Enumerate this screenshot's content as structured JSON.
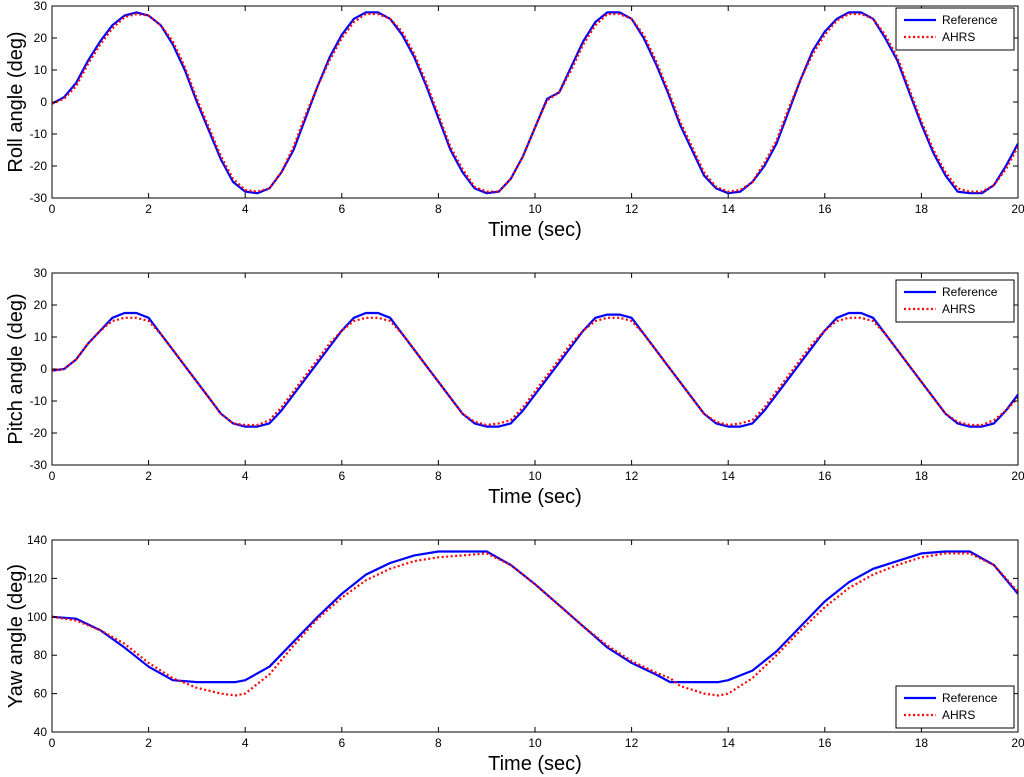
{
  "chart_data": [
    {
      "type": "line",
      "xlabel": "Time (sec)",
      "ylabel": "Roll angle (deg)",
      "xlim": [
        0,
        20
      ],
      "ylim": [
        -30,
        30
      ],
      "xticks": [
        0,
        2,
        4,
        6,
        8,
        10,
        12,
        14,
        16,
        18,
        20
      ],
      "yticks": [
        -30,
        -20,
        -10,
        0,
        10,
        20,
        30
      ],
      "legend_position": "top-right",
      "series": [
        {
          "name": "Reference",
          "color": "#0000ff",
          "style": "solid",
          "x": [
            0,
            0.25,
            0.5,
            0.75,
            1.0,
            1.25,
            1.5,
            1.75,
            2.0,
            2.25,
            2.5,
            2.75,
            3.0,
            3.25,
            3.5,
            3.75,
            4.0,
            4.25,
            4.5,
            4.75,
            5.0,
            5.25,
            5.5,
            5.75,
            6.0,
            6.25,
            6.5,
            6.75,
            7.0,
            7.25,
            7.5,
            7.75,
            8.0,
            8.25,
            8.5,
            8.75,
            9.0,
            9.25,
            9.5,
            9.75,
            10.0,
            10.25,
            10.5,
            10.75,
            11.0,
            11.25,
            11.5,
            11.75,
            12.0,
            12.25,
            12.5,
            12.75,
            13.0,
            13.25,
            13.5,
            13.75,
            14.0,
            14.25,
            14.5,
            14.75,
            15.0,
            15.25,
            15.5,
            15.75,
            16.0,
            16.25,
            16.5,
            16.75,
            17.0,
            17.25,
            17.5,
            17.75,
            18.0,
            18.25,
            18.5,
            18.75,
            19.0,
            19.25,
            19.5,
            19.75,
            20.0
          ],
          "y": [
            -0.5,
            1.5,
            6,
            13,
            19,
            24,
            27,
            28,
            27,
            24,
            18,
            10,
            0,
            -9,
            -18,
            -25,
            -28,
            -28.5,
            -27,
            -22,
            -15,
            -5,
            5,
            14,
            21,
            26,
            28,
            28,
            26,
            21,
            14,
            5,
            -5,
            -15,
            -22,
            -27,
            -28.5,
            -28,
            -24,
            -17,
            -8,
            1,
            3,
            11,
            19,
            25,
            28,
            28,
            26,
            20,
            12,
            3,
            -7,
            -15,
            -23,
            -27,
            -28.5,
            -28,
            -25,
            -20,
            -13,
            -3,
            7,
            16,
            22,
            26,
            28,
            28,
            26,
            20,
            13,
            3,
            -7,
            -16,
            -23,
            -28,
            -28.5,
            -28.5,
            -26,
            -20,
            -13
          ]
        },
        {
          "name": "AHRS",
          "color": "#ff0000",
          "style": "dotted",
          "x": [
            0,
            0.25,
            0.5,
            0.75,
            1.0,
            1.25,
            1.5,
            1.75,
            2.0,
            2.25,
            2.5,
            2.75,
            3.0,
            3.25,
            3.5,
            3.75,
            4.0,
            4.25,
            4.5,
            4.75,
            5.0,
            5.25,
            5.5,
            5.75,
            6.0,
            6.25,
            6.5,
            6.75,
            7.0,
            7.25,
            7.5,
            7.75,
            8.0,
            8.25,
            8.5,
            8.75,
            9.0,
            9.25,
            9.5,
            9.75,
            10.0,
            10.25,
            10.5,
            10.75,
            11.0,
            11.25,
            11.5,
            11.75,
            12.0,
            12.25,
            12.5,
            12.75,
            13.0,
            13.25,
            13.5,
            13.75,
            14.0,
            14.25,
            14.5,
            14.75,
            15.0,
            15.25,
            15.5,
            15.75,
            16.0,
            16.25,
            16.5,
            16.75,
            17.0,
            17.25,
            17.5,
            17.75,
            18.0,
            18.25,
            18.5,
            18.75,
            19.0,
            19.25,
            19.5,
            19.75,
            20.0
          ],
          "y": [
            -0.5,
            1,
            5,
            12,
            18,
            23,
            26.5,
            27.5,
            27,
            24,
            19,
            11,
            1,
            -8,
            -17,
            -24,
            -27.5,
            -28,
            -27,
            -22,
            -14,
            -4,
            5,
            13,
            20,
            25,
            27.5,
            27.5,
            26,
            22,
            15,
            6,
            -4,
            -14,
            -21,
            -26.5,
            -28,
            -28,
            -24,
            -17,
            -8,
            0.5,
            3,
            10,
            18,
            24,
            27.5,
            27.5,
            26,
            21,
            13,
            4,
            -6,
            -14,
            -22,
            -26.5,
            -28,
            -27.5,
            -25,
            -19,
            -12,
            -2,
            7,
            15,
            21,
            25.5,
            27.5,
            27.5,
            26,
            21,
            14,
            4,
            -6,
            -15,
            -22,
            -27,
            -28,
            -28,
            -26,
            -21,
            -14
          ]
        }
      ]
    },
    {
      "type": "line",
      "xlabel": "Time (sec)",
      "ylabel": "Pitch angle (deg)",
      "xlim": [
        0,
        20
      ],
      "ylim": [
        -30,
        30
      ],
      "xticks": [
        0,
        2,
        4,
        6,
        8,
        10,
        12,
        14,
        16,
        18,
        20
      ],
      "yticks": [
        -30,
        -20,
        -10,
        0,
        10,
        20,
        30
      ],
      "legend_position": "top-right",
      "series": [
        {
          "name": "Reference",
          "color": "#0000ff",
          "style": "solid",
          "x": [
            0,
            0.25,
            0.5,
            0.75,
            1.0,
            1.25,
            1.5,
            1.75,
            2.0,
            2.25,
            2.5,
            2.75,
            3.0,
            3.25,
            3.5,
            3.75,
            4.0,
            4.25,
            4.5,
            4.75,
            5.0,
            5.25,
            5.5,
            5.75,
            6.0,
            6.25,
            6.5,
            6.75,
            7.0,
            7.25,
            7.5,
            7.75,
            8.0,
            8.25,
            8.5,
            8.75,
            9.0,
            9.25,
            9.5,
            9.75,
            10.0,
            10.25,
            10.5,
            10.75,
            11.0,
            11.25,
            11.5,
            11.75,
            12.0,
            12.25,
            12.5,
            12.75,
            13.0,
            13.25,
            13.5,
            13.75,
            14.0,
            14.25,
            14.5,
            14.75,
            15.0,
            15.25,
            15.5,
            15.75,
            16.0,
            16.25,
            16.5,
            16.75,
            17.0,
            17.25,
            17.5,
            17.75,
            18.0,
            18.25,
            18.5,
            18.75,
            19.0,
            19.25,
            19.5,
            19.75,
            20.0
          ],
          "y": [
            -0.5,
            0,
            3,
            8,
            12,
            16,
            17.5,
            17.5,
            16,
            11,
            6,
            1,
            -4,
            -9,
            -14,
            -17,
            -18,
            -18,
            -17,
            -13,
            -8,
            -3,
            2,
            7,
            12,
            16,
            17.5,
            17.5,
            16,
            11,
            6,
            1,
            -4,
            -9,
            -14,
            -17,
            -18,
            -18,
            -17,
            -13,
            -8,
            -3,
            2,
            7,
            12,
            16,
            17,
            17,
            16,
            11,
            6,
            1,
            -4,
            -9,
            -14,
            -17,
            -18,
            -18,
            -17,
            -13,
            -8,
            -3,
            2,
            7,
            12,
            16,
            17.5,
            17.5,
            16,
            11,
            6,
            1,
            -4,
            -9,
            -14,
            -17,
            -18,
            -18,
            -17,
            -13,
            -8
          ]
        },
        {
          "name": "AHRS",
          "color": "#ff0000",
          "style": "dotted",
          "x": [
            0,
            0.25,
            0.5,
            0.75,
            1.0,
            1.25,
            1.5,
            1.75,
            2.0,
            2.25,
            2.5,
            2.75,
            3.0,
            3.25,
            3.5,
            3.75,
            4.0,
            4.25,
            4.5,
            4.75,
            5.0,
            5.25,
            5.5,
            5.75,
            6.0,
            6.25,
            6.5,
            6.75,
            7.0,
            7.25,
            7.5,
            7.75,
            8.0,
            8.25,
            8.5,
            8.75,
            9.0,
            9.25,
            9.5,
            9.75,
            10.0,
            10.25,
            10.5,
            10.75,
            11.0,
            11.25,
            11.5,
            11.75,
            12.0,
            12.25,
            12.5,
            12.75,
            13.0,
            13.25,
            13.5,
            13.75,
            14.0,
            14.25,
            14.5,
            14.75,
            15.0,
            15.25,
            15.5,
            15.75,
            16.0,
            16.25,
            16.5,
            16.75,
            17.0,
            17.25,
            17.5,
            17.75,
            18.0,
            18.25,
            18.5,
            18.75,
            19.0,
            19.25,
            19.5,
            19.75,
            20.0
          ],
          "y": [
            -0.5,
            0,
            3,
            8,
            12,
            15,
            16,
            16,
            15,
            11,
            6,
            1,
            -4,
            -9,
            -14,
            -17,
            -17.5,
            -17.5,
            -16,
            -12,
            -7,
            -2,
            3,
            8,
            12,
            15,
            16,
            16,
            15,
            11,
            6,
            1,
            -4,
            -9,
            -14,
            -16.5,
            -17.5,
            -17,
            -16,
            -12,
            -7,
            -2,
            3,
            8,
            12,
            15,
            16,
            16,
            15,
            11,
            6,
            1,
            -4,
            -9,
            -14,
            -16.5,
            -17.5,
            -17,
            -16,
            -12,
            -7,
            -2,
            3,
            8,
            12,
            15,
            16,
            16,
            15,
            11,
            6,
            1,
            -4,
            -9,
            -14,
            -16.5,
            -17.5,
            -17.5,
            -16,
            -13,
            -9
          ]
        }
      ]
    },
    {
      "type": "line",
      "xlabel": "Time (sec)",
      "ylabel": "Yaw angle (deg)",
      "xlim": [
        0,
        20
      ],
      "ylim": [
        40,
        140
      ],
      "xticks": [
        0,
        2,
        4,
        6,
        8,
        10,
        12,
        14,
        16,
        18,
        20
      ],
      "yticks": [
        40,
        60,
        80,
        100,
        120,
        140
      ],
      "legend_position": "bottom-right",
      "series": [
        {
          "name": "Reference",
          "color": "#0000ff",
          "style": "solid",
          "x": [
            0,
            0.5,
            1.0,
            1.5,
            2.0,
            2.5,
            3.0,
            3.5,
            3.8,
            4.0,
            4.5,
            5.0,
            5.5,
            6.0,
            6.5,
            7.0,
            7.5,
            8.0,
            8.5,
            9.0,
            9.5,
            10.0,
            10.5,
            11.0,
            11.5,
            12.0,
            12.5,
            12.8,
            13.0,
            13.5,
            13.8,
            14.0,
            14.5,
            15.0,
            15.5,
            16.0,
            16.5,
            17.0,
            17.5,
            18.0,
            18.5,
            19.0,
            19.5,
            20.0
          ],
          "y": [
            100,
            99,
            93,
            84,
            74,
            67,
            66,
            66,
            66,
            67,
            74,
            87,
            100,
            112,
            122,
            128,
            132,
            134,
            134,
            134,
            127,
            117,
            106,
            95,
            84,
            76,
            70,
            66,
            66,
            66,
            66,
            67,
            72,
            82,
            95,
            108,
            118,
            125,
            129,
            133,
            134,
            134,
            127,
            112
          ]
        },
        {
          "name": "AHRS",
          "color": "#ff0000",
          "style": "dotted",
          "x": [
            0,
            0.5,
            1.0,
            1.5,
            2.0,
            2.5,
            3.0,
            3.5,
            3.8,
            4.0,
            4.5,
            5.0,
            5.5,
            6.0,
            6.5,
            7.0,
            7.5,
            8.0,
            8.5,
            9.0,
            9.5,
            10.0,
            10.5,
            11.0,
            11.5,
            12.0,
            12.5,
            12.8,
            13.0,
            13.5,
            13.8,
            14.0,
            14.5,
            15.0,
            15.5,
            16.0,
            16.5,
            17.0,
            17.5,
            18.0,
            18.5,
            19.0,
            19.5,
            20.0
          ],
          "y": [
            100,
            98,
            93,
            86,
            76,
            68,
            63,
            60,
            59,
            60,
            70,
            85,
            99,
            110,
            119,
            125,
            129,
            131,
            132,
            133,
            127,
            117,
            106,
            95,
            85,
            77,
            71,
            68,
            64,
            60,
            59,
            60,
            68,
            80,
            93,
            105,
            115,
            122,
            127,
            131,
            133,
            133,
            127,
            113
          ]
        }
      ]
    }
  ]
}
